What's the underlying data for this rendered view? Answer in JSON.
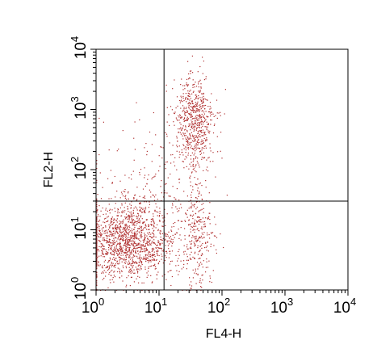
{
  "chart_data": {
    "type": "scatter",
    "xlabel": "FL4-H",
    "ylabel": "FL2-H",
    "xscale": "log",
    "yscale": "log",
    "xlim": [
      1,
      10000
    ],
    "ylim": [
      1,
      10000
    ],
    "x_ticks": [
      {
        "base": "10",
        "exp": "0"
      },
      {
        "base": "10",
        "exp": "1"
      },
      {
        "base": "10",
        "exp": "2"
      },
      {
        "base": "10",
        "exp": "3"
      },
      {
        "base": "10",
        "exp": "4"
      }
    ],
    "y_ticks": [
      {
        "base": "10",
        "exp": "0"
      },
      {
        "base": "10",
        "exp": "1"
      },
      {
        "base": "10",
        "exp": "2"
      },
      {
        "base": "10",
        "exp": "3"
      },
      {
        "base": "10",
        "exp": "4"
      }
    ],
    "quadrant_gates": {
      "x": 12,
      "y": 30
    },
    "point_color": "#b03030",
    "axis_color": "#000000",
    "populations": [
      {
        "x_center": 3.2,
        "y_center": 6.5,
        "x_spread_decades": 0.38,
        "y_spread_decades": 0.32,
        "count": 1500
      },
      {
        "x_center": 35,
        "y_center": 600,
        "x_spread_decades": 0.16,
        "y_spread_decades": 0.4,
        "count": 650
      },
      {
        "x_center": 40,
        "y_center": 8,
        "x_spread_decades": 0.13,
        "y_spread_decades": 0.45,
        "count": 300
      },
      {
        "x_center": 8,
        "y_center": 60,
        "x_spread_decades": 0.45,
        "y_spread_decades": 0.55,
        "count": 200
      }
    ]
  }
}
